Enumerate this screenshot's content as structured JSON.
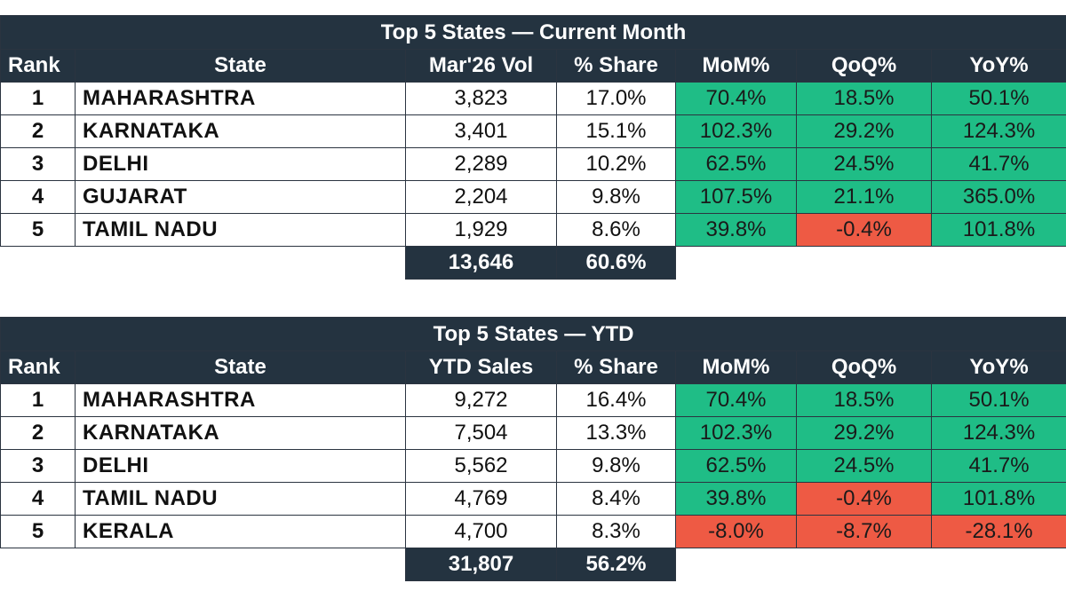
{
  "tables": [
    {
      "title": "Top 5 States — Current Month",
      "headers": [
        "Rank",
        "State",
        "Mar'26 Vol",
        "% Share",
        "MoM%",
        "QoQ%",
        "YoY%"
      ],
      "rows": [
        {
          "rank": "1",
          "state": "MAHARASHTRA",
          "vol": "3,823",
          "share": "17.0%",
          "mom": "70.4%",
          "qoq": "18.5%",
          "yoy": "50.1%"
        },
        {
          "rank": "2",
          "state": "KARNATAKA",
          "vol": "3,401",
          "share": "15.1%",
          "mom": "102.3%",
          "qoq": "29.2%",
          "yoy": "124.3%"
        },
        {
          "rank": "3",
          "state": "DELHI",
          "vol": "2,289",
          "share": "10.2%",
          "mom": "62.5%",
          "qoq": "24.5%",
          "yoy": "41.7%"
        },
        {
          "rank": "4",
          "state": "GUJARAT",
          "vol": "2,204",
          "share": "9.8%",
          "mom": "107.5%",
          "qoq": "21.1%",
          "yoy": "365.0%"
        },
        {
          "rank": "5",
          "state": "TAMIL NADU",
          "vol": "1,929",
          "share": "8.6%",
          "mom": "39.8%",
          "qoq": "-0.4%",
          "yoy": "101.8%"
        }
      ],
      "total": {
        "vol": "13,646",
        "share": "60.6%"
      }
    },
    {
      "title": "Top 5 States — YTD",
      "headers": [
        "Rank",
        "State",
        "YTD Sales",
        "% Share",
        "MoM%",
        "QoQ%",
        "YoY%"
      ],
      "rows": [
        {
          "rank": "1",
          "state": "MAHARASHTRA",
          "vol": "9,272",
          "share": "16.4%",
          "mom": "70.4%",
          "qoq": "18.5%",
          "yoy": "50.1%"
        },
        {
          "rank": "2",
          "state": "KARNATAKA",
          "vol": "7,504",
          "share": "13.3%",
          "mom": "102.3%",
          "qoq": "29.2%",
          "yoy": "124.3%"
        },
        {
          "rank": "3",
          "state": "DELHI",
          "vol": "5,562",
          "share": "9.8%",
          "mom": "62.5%",
          "qoq": "24.5%",
          "yoy": "41.7%"
        },
        {
          "rank": "4",
          "state": "TAMIL NADU",
          "vol": "4,769",
          "share": "8.4%",
          "mom": "39.8%",
          "qoq": "-0.4%",
          "yoy": "101.8%"
        },
        {
          "rank": "5",
          "state": "KERALA",
          "vol": "4,700",
          "share": "8.3%",
          "mom": "-8.0%",
          "qoq": "-8.7%",
          "yoy": "-28.1%"
        }
      ],
      "total": {
        "vol": "31,807",
        "share": "56.2%"
      }
    }
  ],
  "colors": {
    "header_bg": "#243340",
    "positive": "#1fbd86",
    "negative": "#ee5a44"
  }
}
